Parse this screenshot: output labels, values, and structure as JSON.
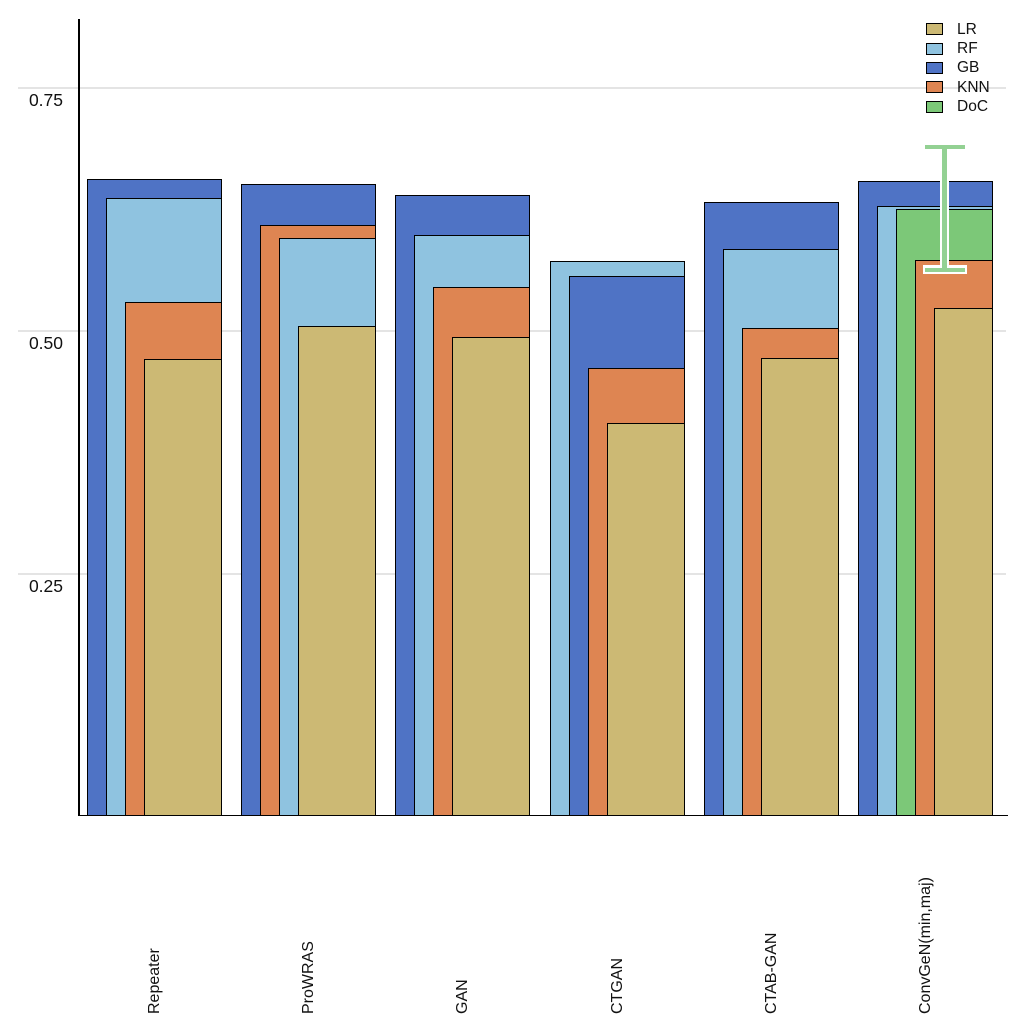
{
  "chart_data": {
    "type": "bar",
    "variant": "grouped-overlay-nested",
    "title": "",
    "xlabel": "",
    "ylabel": "",
    "categories": [
      "Repeater",
      "ProWRAS",
      "GAN",
      "CTGAN",
      "CTAB-GAN",
      "ConvGeN(min,maj)"
    ],
    "series": [
      {
        "name": "LR",
        "color": "#ccb974",
        "values": [
          0.47,
          0.504,
          0.493,
          0.404,
          0.471,
          0.523
        ]
      },
      {
        "name": "RF",
        "color": "#8fc3e0",
        "values": [
          0.636,
          0.595,
          0.598,
          0.571,
          0.583,
          0.628
        ]
      },
      {
        "name": "GB",
        "color": "#4f73c5",
        "values": [
          0.655,
          0.65,
          0.639,
          0.556,
          0.632,
          0.653
        ]
      },
      {
        "name": "KNN",
        "color": "#de8552",
        "values": [
          0.529,
          0.608,
          0.544,
          0.461,
          0.502,
          0.572
        ]
      },
      {
        "name": "DoC",
        "color": "#7cc878",
        "values": [
          null,
          null,
          null,
          null,
          null,
          0.625
        ]
      }
    ],
    "error_bars": [
      {
        "series": "DoC",
        "category": "ConvGeN(min,maj)",
        "low": 0.562,
        "high": 0.688,
        "color": "#93d193",
        "casing_color": "#ffffff"
      }
    ],
    "y_axis": {
      "range": [
        0,
        0.82
      ],
      "ticks": [
        {
          "value": 0.75,
          "label": "0.75"
        },
        {
          "value": 0.5,
          "label": "0.50"
        },
        {
          "value": 0.25,
          "label": "0.25"
        }
      ]
    },
    "legend": {
      "position": "top-right",
      "entries": [
        "LR",
        "RF",
        "GB",
        "KNN",
        "DoC"
      ]
    },
    "grid": true,
    "bar_edge_color": "#000000",
    "background_color": "#ffffff"
  }
}
